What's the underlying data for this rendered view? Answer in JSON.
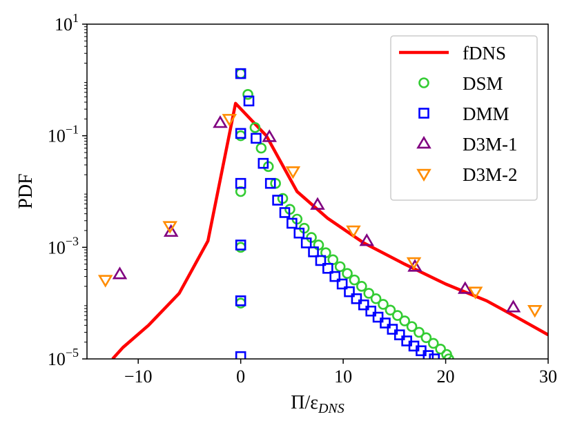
{
  "chart_data": {
    "type": "line",
    "title": "",
    "xlabel": "Π/ε",
    "xlabel_subscript": "DNS",
    "ylabel": "PDF",
    "xlim": [
      -15,
      30
    ],
    "ylim_log10": [
      -5,
      1
    ],
    "y_scale": "log",
    "grid": false,
    "legend_position": "top-right",
    "x_ticks": [
      -10,
      0,
      10,
      20,
      30
    ],
    "x_tick_labels": [
      "−10",
      "0",
      "10",
      "20",
      "30"
    ],
    "y_ticks": [
      1e-05,
      0.001,
      0.1,
      10
    ],
    "y_tick_bases": [
      "10",
      "10",
      "10",
      "10"
    ],
    "y_tick_exponents": [
      "−5",
      "−3",
      "−1",
      "1"
    ],
    "series": [
      {
        "name": "fDNS",
        "kind": "line",
        "color": "#ff0000",
        "points": [
          [
            -12.5,
            1e-05
          ],
          [
            -11.5,
            1.6e-05
          ],
          [
            -9,
            4e-05
          ],
          [
            -6,
            0.00015
          ],
          [
            -3.2,
            0.0013
          ],
          [
            -0.5,
            0.38
          ],
          [
            2.5,
            0.1
          ],
          [
            5.5,
            0.01
          ],
          [
            8.5,
            0.0033
          ],
          [
            12,
            0.0012
          ],
          [
            16,
            0.0005
          ],
          [
            20,
            0.00022
          ],
          [
            24,
            0.00011
          ],
          [
            27,
            5.5e-05
          ],
          [
            30,
            2.7e-05
          ]
        ]
      },
      {
        "name": "DSM",
        "kind": "marker",
        "marker": "circle",
        "color": "#33cc33",
        "points": [
          [
            0,
            0.0001
          ],
          [
            0,
            0.001
          ],
          [
            0,
            0.01
          ],
          [
            0,
            0.1
          ],
          [
            0,
            1.3
          ],
          [
            0.7,
            0.55
          ],
          [
            1.4,
            0.14
          ],
          [
            2,
            0.06
          ],
          [
            2.7,
            0.028
          ],
          [
            3.4,
            0.014
          ],
          [
            4.1,
            0.0075
          ],
          [
            4.8,
            0.0048
          ],
          [
            5.5,
            0.0032
          ],
          [
            6.2,
            0.0022
          ],
          [
            6.9,
            0.0015
          ],
          [
            7.6,
            0.0011
          ],
          [
            8.3,
            0.0008
          ],
          [
            9,
            0.0006
          ],
          [
            9.7,
            0.00045
          ],
          [
            10.4,
            0.00034
          ],
          [
            11.1,
            0.00026
          ],
          [
            11.8,
            0.0002
          ],
          [
            12.5,
            0.00015
          ],
          [
            13.2,
            0.00012
          ],
          [
            13.9,
            9.5e-05
          ],
          [
            14.6,
            7.5e-05
          ],
          [
            15.3,
            6e-05
          ],
          [
            16,
            4.8e-05
          ],
          [
            16.7,
            3.8e-05
          ],
          [
            17.4,
            3e-05
          ],
          [
            18.1,
            2.4e-05
          ],
          [
            18.8,
            1.9e-05
          ],
          [
            19.5,
            1.5e-05
          ],
          [
            20.1,
            1.2e-05
          ],
          [
            20.3,
            1e-05
          ]
        ]
      },
      {
        "name": "DMM",
        "kind": "marker",
        "marker": "square",
        "color": "#0000ff",
        "points": [
          [
            0,
            1.1e-05
          ],
          [
            0,
            0.00011
          ],
          [
            0,
            0.0011
          ],
          [
            0,
            0.014
          ],
          [
            0,
            0.11
          ],
          [
            0,
            1.3
          ],
          [
            0.8,
            0.42
          ],
          [
            1.5,
            0.09
          ],
          [
            2.2,
            0.032
          ],
          [
            2.9,
            0.014
          ],
          [
            3.6,
            0.007
          ],
          [
            4.3,
            0.0042
          ],
          [
            5,
            0.0027
          ],
          [
            5.7,
            0.0018
          ],
          [
            6.4,
            0.0012
          ],
          [
            7.1,
            0.00083
          ],
          [
            7.8,
            0.00058
          ],
          [
            8.5,
            0.00042
          ],
          [
            9.2,
            0.0003
          ],
          [
            9.9,
            0.00022
          ],
          [
            10.6,
            0.00016
          ],
          [
            11.3,
            0.00012
          ],
          [
            12,
            9.3e-05
          ],
          [
            12.7,
            7.2e-05
          ],
          [
            13.4,
            5.6e-05
          ],
          [
            14.1,
            4.4e-05
          ],
          [
            14.8,
            3.4e-05
          ],
          [
            15.5,
            2.7e-05
          ],
          [
            16.2,
            2.1e-05
          ],
          [
            16.9,
            1.7e-05
          ],
          [
            17.6,
            1.4e-05
          ],
          [
            18.3,
            1.15e-05
          ],
          [
            18.9,
            1e-05
          ]
        ]
      },
      {
        "name": "D3M-1",
        "kind": "marker",
        "marker": "triangle-up",
        "color": "#800080",
        "points": [
          [
            -11.8,
            0.00033
          ],
          [
            -6.8,
            0.0019
          ],
          [
            -2,
            0.17
          ],
          [
            2.8,
            0.095
          ],
          [
            7.5,
            0.0058
          ],
          [
            12.3,
            0.0013
          ],
          [
            17,
            0.00045
          ],
          [
            21.9,
            0.00018
          ],
          [
            26.6,
            8.4e-05
          ]
        ]
      },
      {
        "name": "D3M-2",
        "kind": "marker",
        "marker": "triangle-down",
        "color": "#ff8c00",
        "points": [
          [
            -13.2,
            0.00026
          ],
          [
            -6.9,
            0.0024
          ],
          [
            -1.1,
            0.2
          ],
          [
            5.1,
            0.023
          ],
          [
            11,
            0.002
          ],
          [
            16.9,
            0.00054
          ],
          [
            22.9,
            0.00016
          ],
          [
            28.7,
            7.5e-05
          ]
        ]
      }
    ]
  }
}
